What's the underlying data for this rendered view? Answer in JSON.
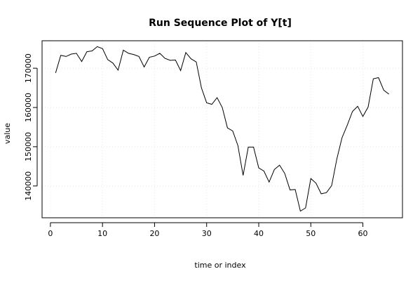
{
  "chart_data": {
    "type": "line",
    "title": "Run Sequence Plot of Y[t]",
    "xlabel": "time or index",
    "ylabel": "value",
    "xlim": [
      -1.6,
      67.6
    ],
    "ylim": [
      131900,
      177000
    ],
    "xticks": [
      0,
      10,
      20,
      30,
      40,
      50,
      60
    ],
    "yticks": [
      140000,
      150000,
      160000,
      170000
    ],
    "grid": true,
    "series": [
      {
        "x": [
          1,
          2,
          3,
          4,
          5,
          6,
          7,
          8,
          9,
          10,
          11,
          12,
          13,
          14,
          15,
          16,
          17,
          18,
          19,
          20,
          21,
          22,
          23,
          24,
          25,
          26,
          27,
          28,
          29,
          30,
          31,
          32,
          33,
          34,
          35,
          36,
          37,
          38,
          39,
          40,
          41,
          42,
          43,
          44,
          45,
          46,
          47,
          48,
          49,
          50,
          51,
          52,
          53,
          54,
          55,
          56,
          57,
          58,
          59,
          60,
          61,
          62,
          63,
          64,
          65
        ],
        "values": [
          168800,
          173300,
          173000,
          173600,
          173800,
          171700,
          174200,
          174400,
          175500,
          175000,
          172200,
          171300,
          169500,
          174600,
          173800,
          173500,
          173000,
          170300,
          172800,
          173100,
          173800,
          172500,
          172000,
          172100,
          169400,
          174000,
          172400,
          171600,
          165000,
          161200,
          160800,
          162500,
          160000,
          154800,
          154000,
          150300,
          142700,
          149900,
          149900,
          144600,
          143800,
          141000,
          144200,
          145300,
          143200,
          139000,
          139100,
          133600,
          134400,
          141900,
          140700,
          138000,
          138300,
          140100,
          146900,
          152300,
          155500,
          159000,
          160300,
          157700,
          160100,
          167300,
          167600,
          164400,
          163400
        ]
      }
    ]
  }
}
